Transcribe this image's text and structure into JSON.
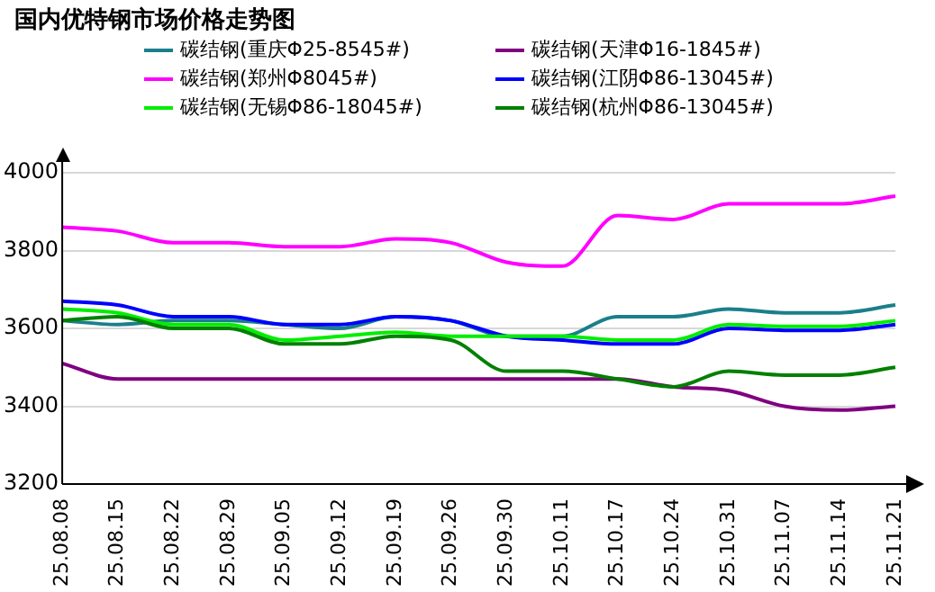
{
  "chart_data": {
    "type": "line",
    "title": "国内优特钢市场价格走势图",
    "categories": [
      "25.08.08",
      "25.08.15",
      "25.08.22",
      "25.08.29",
      "25.09.05",
      "25.09.12",
      "25.09.19",
      "25.09.26",
      "25.09.30",
      "25.10.11",
      "25.10.17",
      "25.10.24",
      "25.10.31",
      "25.11.07",
      "25.11.14",
      "25.11.21"
    ],
    "series": [
      {
        "name": "碳结钢(重庆Φ25-8545#)",
        "color": "#1a7f8a",
        "values": [
          3620,
          3610,
          3620,
          3620,
          3610,
          3600,
          3630,
          3620,
          3580,
          3580,
          3630,
          3630,
          3650,
          3640,
          3640,
          3660
        ]
      },
      {
        "name": "碳结钢(天津Φ16-1845#)",
        "color": "#800080",
        "values": [
          3510,
          3470,
          3470,
          3470,
          3470,
          3470,
          3470,
          3470,
          3470,
          3470,
          3470,
          3450,
          3440,
          3400,
          3390,
          3400
        ]
      },
      {
        "name": "碳结钢(郑州Φ8045#)",
        "color": "#ff00ff",
        "values": [
          3860,
          3850,
          3820,
          3820,
          3810,
          3810,
          3830,
          3820,
          3770,
          3760,
          3890,
          3880,
          3920,
          3920,
          3920,
          3940
        ]
      },
      {
        "name": "碳结钢(江阴Φ86-13045#)",
        "color": "#0000ff",
        "values": [
          3670,
          3660,
          3630,
          3630,
          3610,
          3610,
          3630,
          3620,
          3580,
          3570,
          3560,
          3560,
          3600,
          3595,
          3595,
          3610
        ]
      },
      {
        "name": "碳结钢(无锡Φ86-18045#)",
        "color": "#00ee00",
        "values": [
          3650,
          3640,
          3610,
          3610,
          3570,
          3580,
          3590,
          3580,
          3580,
          3580,
          3570,
          3570,
          3610,
          3605,
          3605,
          3620
        ]
      },
      {
        "name": "碳结钢(杭州Φ86-13045#)",
        "color": "#008000",
        "values": [
          3620,
          3630,
          3600,
          3600,
          3560,
          3560,
          3580,
          3570,
          3490,
          3490,
          3470,
          3450,
          3490,
          3480,
          3480,
          3500
        ]
      }
    ],
    "ylim": [
      3200,
      4000
    ],
    "yticks": [
      3200,
      3400,
      3600,
      3800,
      4000
    ],
    "grid": "y",
    "legend": "top",
    "marker": "none",
    "line_style": "solid"
  }
}
